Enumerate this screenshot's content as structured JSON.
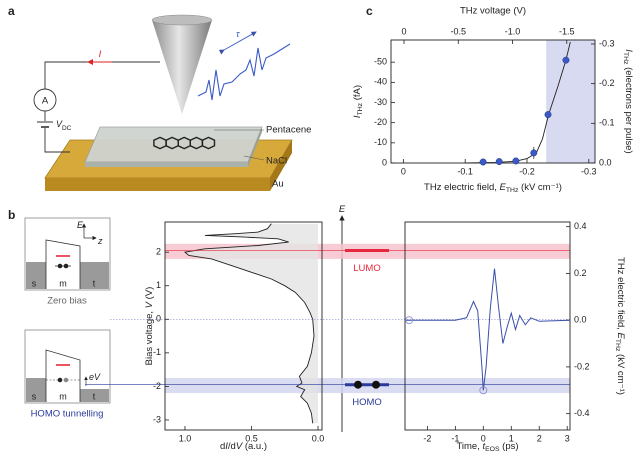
{
  "figure": {
    "panel_labels": [
      "a",
      "b",
      "c"
    ]
  },
  "setup": {
    "current": [
      {
        "text": "I",
        "italic": true
      }
    ],
    "ammeter": "A",
    "bias": [
      {
        "text": "V",
        "italic": true
      },
      {
        "text": "DC",
        "sub": true
      }
    ],
    "delay": [
      {
        "text": "τ",
        "italic": true
      }
    ],
    "molecule": "Pentacene",
    "insulator": "NaCl",
    "substrate": "Au"
  },
  "insets": {
    "energy": [
      {
        "text": "E",
        "italic": true
      }
    ],
    "position": [
      {
        "text": "z",
        "italic": true
      }
    ],
    "regions": [
      "s",
      "m",
      "t"
    ],
    "zero_bias": "Zero bias",
    "homo": "HOMO tunnelling",
    "bias_energy": [
      {
        "text": "eV",
        "italic": true
      }
    ]
  },
  "energy_axis": [
    {
      "text": "E",
      "italic": true
    }
  ],
  "chart_data": [
    {
      "type": "scatter",
      "x2label": "THz voltage (V)",
      "xlabel": [
        {
          "text": "THz electric field, "
        },
        {
          "text": "E",
          "italic": true
        },
        {
          "text": "THz",
          "sub": true
        },
        {
          "text": " (kV cm⁻¹)"
        }
      ],
      "ylabel": [
        {
          "text": "I",
          "italic": true
        },
        {
          "text": "THz",
          "sub": true
        },
        {
          "text": " (fA)"
        }
      ],
      "y2label": [
        {
          "text": "I",
          "italic": true
        },
        {
          "text": "THz",
          "sub": true
        },
        {
          "text": " (electrons per pulse)"
        }
      ],
      "xlim": [
        0.02,
        -0.31
      ],
      "xticks": [
        0,
        -0.1,
        -0.2,
        -0.3
      ],
      "x2lim": [
        0.12,
        -1.76
      ],
      "x2ticks": [
        0,
        -0.5,
        {
          "value": -1,
          "label": "-1.0"
        },
        -1.5
      ],
      "ylim": [
        0,
        -61
      ],
      "yticks": [
        0,
        -10,
        -20,
        -30,
        -40,
        -50
      ],
      "y2lim": [
        0,
        -0.31
      ],
      "y2ticks": [
        {
          "value": 0,
          "label": "0.0"
        },
        -0.1,
        -0.2,
        -0.3
      ],
      "x": [
        -0.129,
        -0.155,
        -0.182,
        -0.211,
        -0.234,
        -0.263
      ],
      "values": [
        -0.5,
        -0.7,
        -1,
        -5,
        -24,
        -51
      ],
      "errors": [
        null,
        null,
        null,
        3,
        null,
        null
      ],
      "color": "#3a5bc7",
      "fit": {
        "x": [
          -0.1,
          -0.15,
          -0.18,
          -0.2,
          -0.215,
          -0.225,
          -0.235,
          -0.25,
          -0.263,
          -0.27
        ],
        "values": [
          0,
          -0.3,
          -0.8,
          -2.2,
          -5,
          -12,
          -24,
          -38,
          -51,
          -60
        ],
        "color": "#222222"
      },
      "shade": {
        "x": [
          -0.231,
          -0.31
        ],
        "color": "#d8daf2"
      }
    },
    {
      "type": "spectrum",
      "xlabel": [
        {
          "text": "d"
        },
        {
          "text": "I",
          "italic": true
        },
        {
          "text": "/d"
        },
        {
          "text": "V",
          "italic": true
        },
        {
          "text": " (a.u.)"
        }
      ],
      "ylabel": [
        {
          "text": "Bias voltage, "
        },
        {
          "text": "V",
          "italic": true
        },
        {
          "text": " (V)"
        }
      ],
      "xlim": [
        1.15,
        -0.03
      ],
      "xticks": [
        {
          "value": 1,
          "label": "1.0"
        },
        0.5,
        {
          "value": 0,
          "label": "0.0"
        }
      ],
      "ylim": [
        -3.3,
        2.9
      ],
      "yticks": [
        -3,
        -2,
        -1,
        0,
        1,
        2
      ],
      "bias": [
        2.85,
        2.7,
        2.6,
        2.55,
        2.5,
        2.45,
        2.4,
        2.3,
        2.2,
        2.1,
        2.0,
        1.9,
        1.8,
        1.6,
        1.4,
        1.2,
        1.0,
        0.8,
        0.5,
        0.2,
        0,
        -0.5,
        -1.0,
        -1.4,
        -1.7,
        -1.9,
        -2.0,
        -2.1,
        -2.3,
        -2.5,
        -2.8,
        -3.1
      ],
      "values": [
        0.35,
        0.38,
        0.45,
        0.62,
        0.85,
        0.55,
        0.3,
        0.22,
        0.45,
        0.85,
        1.0,
        0.97,
        0.8,
        0.65,
        0.5,
        0.35,
        0.25,
        0.17,
        0.1,
        0.06,
        0.04,
        0.03,
        0.05,
        0.08,
        0.14,
        0.12,
        0.16,
        0.1,
        0.13,
        0.08,
        0.05,
        0.04
      ],
      "color": "#222222",
      "fill_color": "#e4e4e4",
      "reference_level": 0,
      "bands": [
        {
          "label": "LUMO",
          "range": [
            1.8,
            2.25
          ],
          "level": 2.05,
          "color": "#e8283c",
          "band_color": "#f7c3cc"
        },
        {
          "label": "HOMO",
          "range": [
            -2.2,
            -1.75
          ],
          "level": -1.95,
          "color": "#2b3a9a",
          "band_color": "#d3d6ee"
        }
      ]
    },
    {
      "type": "waveform",
      "xlabel": [
        {
          "text": "Time, "
        },
        {
          "text": "t",
          "italic": true
        },
        {
          "text": "EOS",
          "sub": true
        },
        {
          "text": " (ps)"
        }
      ],
      "ylabel": [
        {
          "text": "THz electric field, "
        },
        {
          "text": "E",
          "italic": true
        },
        {
          "text": "THz",
          "sub": true
        },
        {
          "text": " (kV cm⁻¹)"
        }
      ],
      "xlim": [
        -2.8,
        3.1
      ],
      "xticks": [
        -2,
        -1,
        0,
        1,
        2,
        3
      ],
      "ylim": [
        -0.47,
        0.42
      ],
      "yticks": [
        -0.4,
        -0.2,
        {
          "value": 0,
          "label": "0.0"
        },
        0.2,
        0.4
      ],
      "x": [
        -2.8,
        -1,
        -0.6,
        -0.35,
        -0.2,
        -0.05,
        0,
        0.1,
        0.25,
        0.4,
        0.55,
        0.7,
        0.85,
        1.0,
        1.15,
        1.3,
        1.5,
        1.7,
        2.0,
        3.1
      ],
      "values": [
        0,
        0,
        0.01,
        0.08,
        0.04,
        -0.2,
        -0.3,
        -0.2,
        0.05,
        0.22,
        0.05,
        -0.1,
        -0.03,
        0.03,
        -0.04,
        0.02,
        -0.02,
        0.01,
        -0.005,
        0
      ],
      "color": "#3a4fa8",
      "markers": {
        "x": [
          -2.65,
          0
        ],
        "values": [
          0,
          -0.3
        ],
        "color": "#8a93cf"
      }
    }
  ]
}
